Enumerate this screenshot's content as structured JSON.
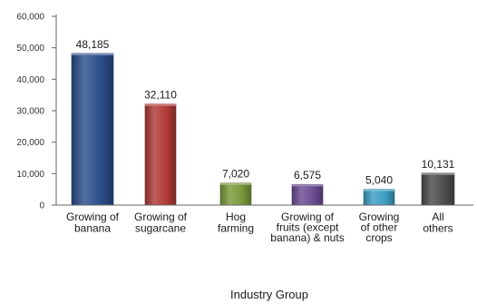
{
  "chart_data": {
    "type": "bar",
    "title": "",
    "xlabel": "Industry Group",
    "ylabel": "",
    "ylim": [
      0,
      60000
    ],
    "yticks": [
      "0",
      "10,000",
      "20,000",
      "30,000",
      "40,000",
      "50,000",
      "60,000"
    ],
    "grid": false,
    "legend": "none",
    "categories": [
      "Growing of banana",
      "Growing of sugarcane",
      "Hog farming",
      "Growing of fruits (except banana) & nuts",
      "Growing of other crops",
      "All others"
    ],
    "category_lines": [
      [
        "Growing of",
        "banana"
      ],
      [
        "Growing of",
        "sugarcane"
      ],
      [
        "Hog",
        "farming"
      ],
      [
        "Growing of",
        "fruits (except",
        "banana) & nuts"
      ],
      [
        "Growing",
        "of other",
        "crops"
      ],
      [
        "All",
        "others"
      ]
    ],
    "values": [
      48185,
      32110,
      7020,
      6575,
      5040,
      10131
    ],
    "value_labels": [
      "48,185",
      "32,110",
      "7,020",
      "6,575",
      "5,040",
      "10,131"
    ],
    "colors": [
      "#2B4E8C",
      "#B03A37",
      "#7A9A3A",
      "#6B4C93",
      "#3C9FC4",
      "#4D4D4D"
    ],
    "axis_color": "#666666"
  }
}
